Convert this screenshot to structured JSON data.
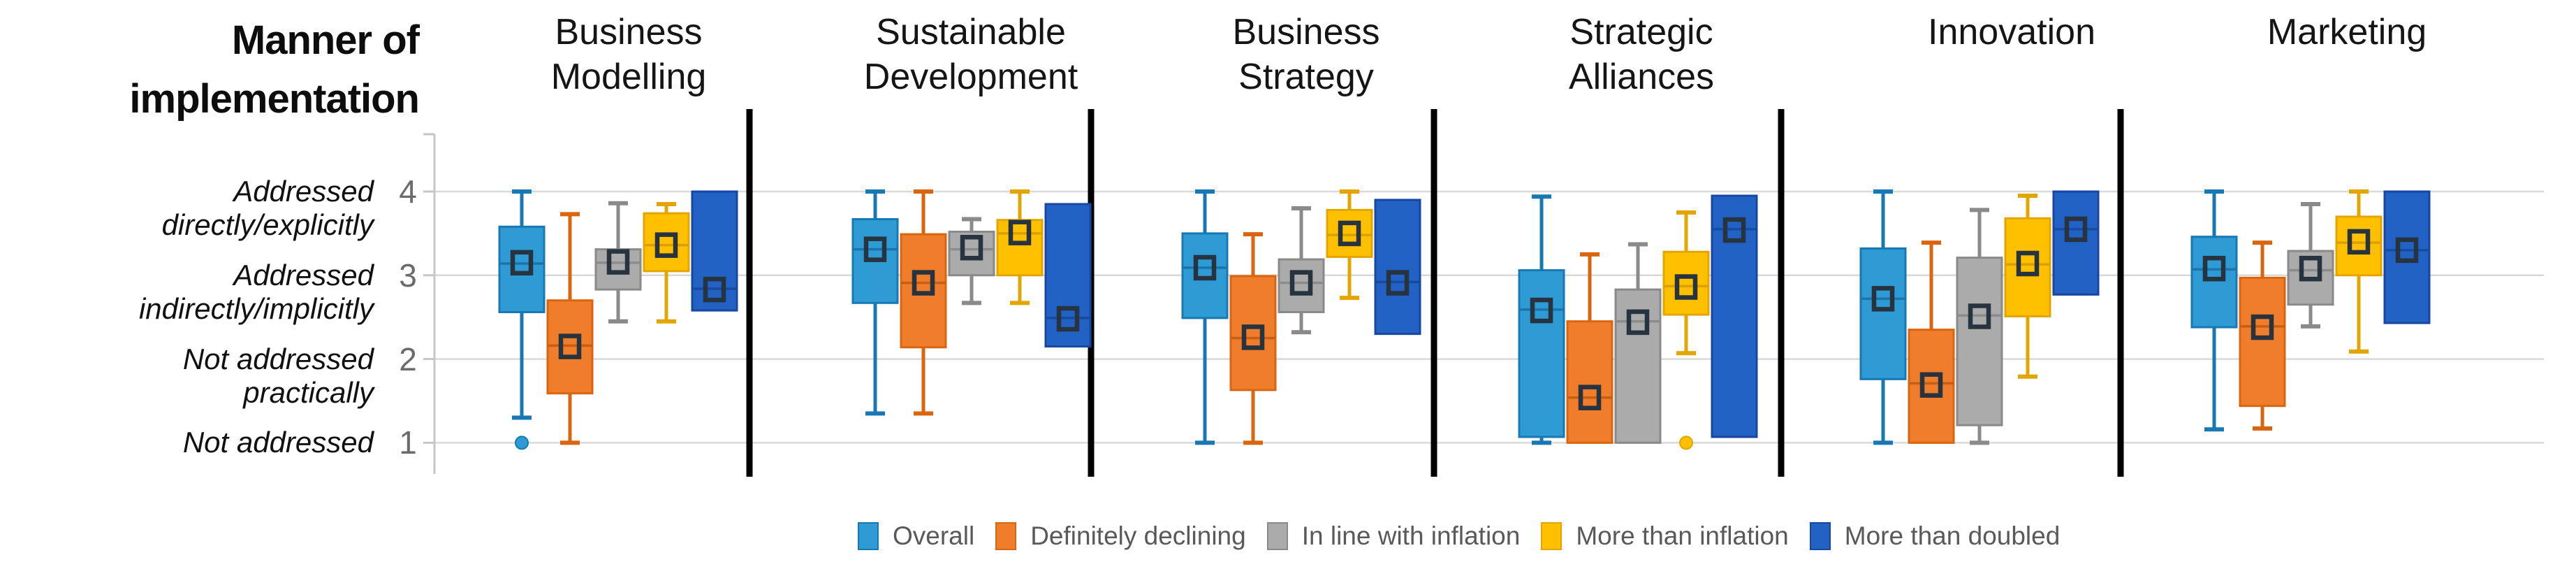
{
  "title": {
    "line1": "Manner of",
    "line2": "implementation"
  },
  "y_axis": {
    "tick_labels": [
      {
        "text": "Addressed directly/explicitly",
        "value": "4"
      },
      {
        "text": "Addressed indirectly/implicitly",
        "value": "3"
      },
      {
        "text": "Not addressed practically",
        "value": "2"
      },
      {
        "text": "Not addressed",
        "value": "1"
      }
    ]
  },
  "headers": [
    {
      "line1": "Business",
      "line2": "Modelling"
    },
    {
      "line1": "Sustainable",
      "line2": "Development"
    },
    {
      "line1": "Business",
      "line2": "Strategy"
    },
    {
      "line1": "Strategic",
      "line2": "Alliances"
    },
    {
      "line1": "Innovation",
      "line2": ""
    },
    {
      "line1": "Marketing",
      "line2": ""
    }
  ],
  "colors": {
    "gridline": "#D9D9D9",
    "axis": "#C6C6C6",
    "separator": "#000000",
    "mean_marker": "#27333F",
    "legend_text": "#595959"
  },
  "chart_data": {
    "type": "boxplot",
    "title": "Manner of implementation",
    "xlabel": "",
    "ylabel": "Manner of implementation",
    "ylim": [
      1,
      4
    ],
    "grid": true,
    "legend_position": "bottom",
    "y_tick_values": [
      4,
      3,
      2,
      1
    ],
    "categories": [
      "Business Modelling",
      "Sustainable Development",
      "Business Strategy",
      "Strategic Alliances",
      "Innovation",
      "Marketing"
    ],
    "series": [
      {
        "name": "Overall",
        "fill": "#2E9BD5",
        "border": "#1878B4",
        "median_color": "#1C74AC"
      },
      {
        "name": "Definitely declining",
        "fill": "#F07D2B",
        "border": "#D9660F",
        "median_color": "#C65F12"
      },
      {
        "name": "In line with inflation",
        "fill": "#ABABAB",
        "border": "#8A8A8A",
        "median_color": "#8C8C8C"
      },
      {
        "name": "More than inflation",
        "fill": "#FFC000",
        "border": "#E3A600",
        "median_color": "#DC9F00"
      },
      {
        "name": "More than doubled",
        "fill": "#2262C4",
        "border": "#1747A0",
        "median_color": "#174B9F"
      }
    ],
    "groups": [
      {
        "category": "Business Modelling",
        "boxes": [
          {
            "series": "Overall",
            "whisker_low": 1.3,
            "q1": 2.56,
            "median": 3.14,
            "mean": 3.15,
            "q3": 3.58,
            "whisker_high": 4.0,
            "outliers": [
              1.0
            ]
          },
          {
            "series": "Definitely declining",
            "whisker_low": 1.0,
            "q1": 1.59,
            "median": 2.16,
            "mean": 2.15,
            "q3": 2.7,
            "whisker_high": 3.73
          },
          {
            "series": "In line with inflation",
            "whisker_low": 2.45,
            "q1": 2.83,
            "median": 3.15,
            "mean": 3.16,
            "q3": 3.31,
            "whisker_high": 3.86
          },
          {
            "series": "More than inflation",
            "whisker_low": 2.45,
            "q1": 3.05,
            "median": 3.36,
            "mean": 3.36,
            "q3": 3.74,
            "whisker_high": 3.85
          },
          {
            "series": "More than doubled",
            "q1": 2.58,
            "median": 2.84,
            "mean": 2.83,
            "q3": 4.0
          }
        ]
      },
      {
        "category": "Sustainable Development",
        "boxes": [
          {
            "series": "Overall",
            "whisker_low": 1.35,
            "q1": 2.67,
            "median": 3.31,
            "mean": 3.31,
            "q3": 3.67,
            "whisker_high": 4.0
          },
          {
            "series": "Definitely declining",
            "whisker_low": 1.35,
            "q1": 2.14,
            "median": 2.91,
            "mean": 2.91,
            "q3": 3.49,
            "whisker_high": 4.0
          },
          {
            "series": "In line with inflation",
            "whisker_low": 2.67,
            "q1": 3.0,
            "median": 3.31,
            "mean": 3.33,
            "q3": 3.52,
            "whisker_high": 3.67
          },
          {
            "series": "More than inflation",
            "whisker_low": 2.67,
            "q1": 3.0,
            "median": 3.5,
            "mean": 3.51,
            "q3": 3.66,
            "whisker_high": 4.0
          },
          {
            "series": "More than doubled",
            "q1": 2.15,
            "median": 2.49,
            "mean": 2.48,
            "q3": 3.85
          }
        ]
      },
      {
        "category": "Business Strategy",
        "boxes": [
          {
            "series": "Overall",
            "whisker_low": 1.0,
            "q1": 2.49,
            "median": 3.09,
            "mean": 3.09,
            "q3": 3.5,
            "whisker_high": 4.0
          },
          {
            "series": "Definitely declining",
            "whisker_low": 1.0,
            "q1": 1.63,
            "median": 2.25,
            "mean": 2.26,
            "q3": 2.99,
            "whisker_high": 3.49
          },
          {
            "series": "In line with inflation",
            "whisker_low": 2.32,
            "q1": 2.56,
            "median": 2.91,
            "mean": 2.91,
            "q3": 3.19,
            "whisker_high": 3.8
          },
          {
            "series": "More than inflation",
            "whisker_low": 2.73,
            "q1": 3.22,
            "median": 3.48,
            "mean": 3.5,
            "q3": 3.78,
            "whisker_high": 4.0
          },
          {
            "series": "More than doubled",
            "q1": 2.3,
            "median": 2.92,
            "mean": 2.91,
            "q3": 3.9
          }
        ]
      },
      {
        "category": "Strategic Alliances",
        "boxes": [
          {
            "series": "Overall",
            "whisker_low": 1.0,
            "q1": 1.07,
            "median": 2.59,
            "mean": 2.58,
            "q3": 3.06,
            "whisker_high": 3.94
          },
          {
            "series": "Definitely declining",
            "q1": 1.0,
            "median": 1.54,
            "mean": 1.54,
            "q3": 2.45,
            "whisker_high": 3.25
          },
          {
            "series": "In line with inflation",
            "q1": 1.0,
            "median": 2.45,
            "mean": 2.44,
            "q3": 2.83,
            "whisker_high": 3.37
          },
          {
            "series": "More than inflation",
            "whisker_low": 2.07,
            "q1": 2.53,
            "median": 2.87,
            "mean": 2.86,
            "q3": 3.28,
            "whisker_high": 3.75,
            "outliers": [
              1.0
            ]
          },
          {
            "series": "More than doubled",
            "q1": 1.07,
            "median": 3.55,
            "mean": 3.54,
            "q3": 3.95
          }
        ]
      },
      {
        "category": "Innovation",
        "boxes": [
          {
            "series": "Overall",
            "whisker_low": 1.0,
            "q1": 1.76,
            "median": 2.72,
            "mean": 2.72,
            "q3": 3.32,
            "whisker_high": 4.0
          },
          {
            "series": "Definitely declining",
            "q1": 1.0,
            "median": 1.71,
            "mean": 1.69,
            "q3": 2.35,
            "whisker_high": 3.39
          },
          {
            "series": "In line with inflation",
            "whisker_low": 1.0,
            "q1": 1.21,
            "median": 2.52,
            "mean": 2.51,
            "q3": 3.21,
            "whisker_high": 3.78
          },
          {
            "series": "More than inflation",
            "whisker_low": 1.79,
            "q1": 2.51,
            "median": 3.13,
            "mean": 3.14,
            "q3": 3.68,
            "whisker_high": 3.95
          },
          {
            "series": "More than doubled",
            "q1": 2.77,
            "median": 3.55,
            "mean": 3.55,
            "q3": 4.0
          }
        ]
      },
      {
        "category": "Marketing",
        "boxes": [
          {
            "series": "Overall",
            "whisker_low": 1.16,
            "q1": 2.38,
            "median": 3.07,
            "mean": 3.08,
            "q3": 3.46,
            "whisker_high": 4.0
          },
          {
            "series": "Definitely declining",
            "whisker_low": 1.17,
            "q1": 1.44,
            "median": 2.39,
            "mean": 2.38,
            "q3": 2.97,
            "whisker_high": 3.39
          },
          {
            "series": "In line with inflation",
            "whisker_low": 2.39,
            "q1": 2.65,
            "median": 3.06,
            "mean": 3.08,
            "q3": 3.29,
            "whisker_high": 3.85
          },
          {
            "series": "More than inflation",
            "whisker_low": 2.09,
            "q1": 3.0,
            "median": 3.39,
            "mean": 3.4,
            "q3": 3.7,
            "whisker_high": 4.0
          },
          {
            "series": "More than doubled",
            "q1": 2.43,
            "median": 3.3,
            "mean": 3.3,
            "q3": 4.0
          }
        ]
      }
    ]
  }
}
